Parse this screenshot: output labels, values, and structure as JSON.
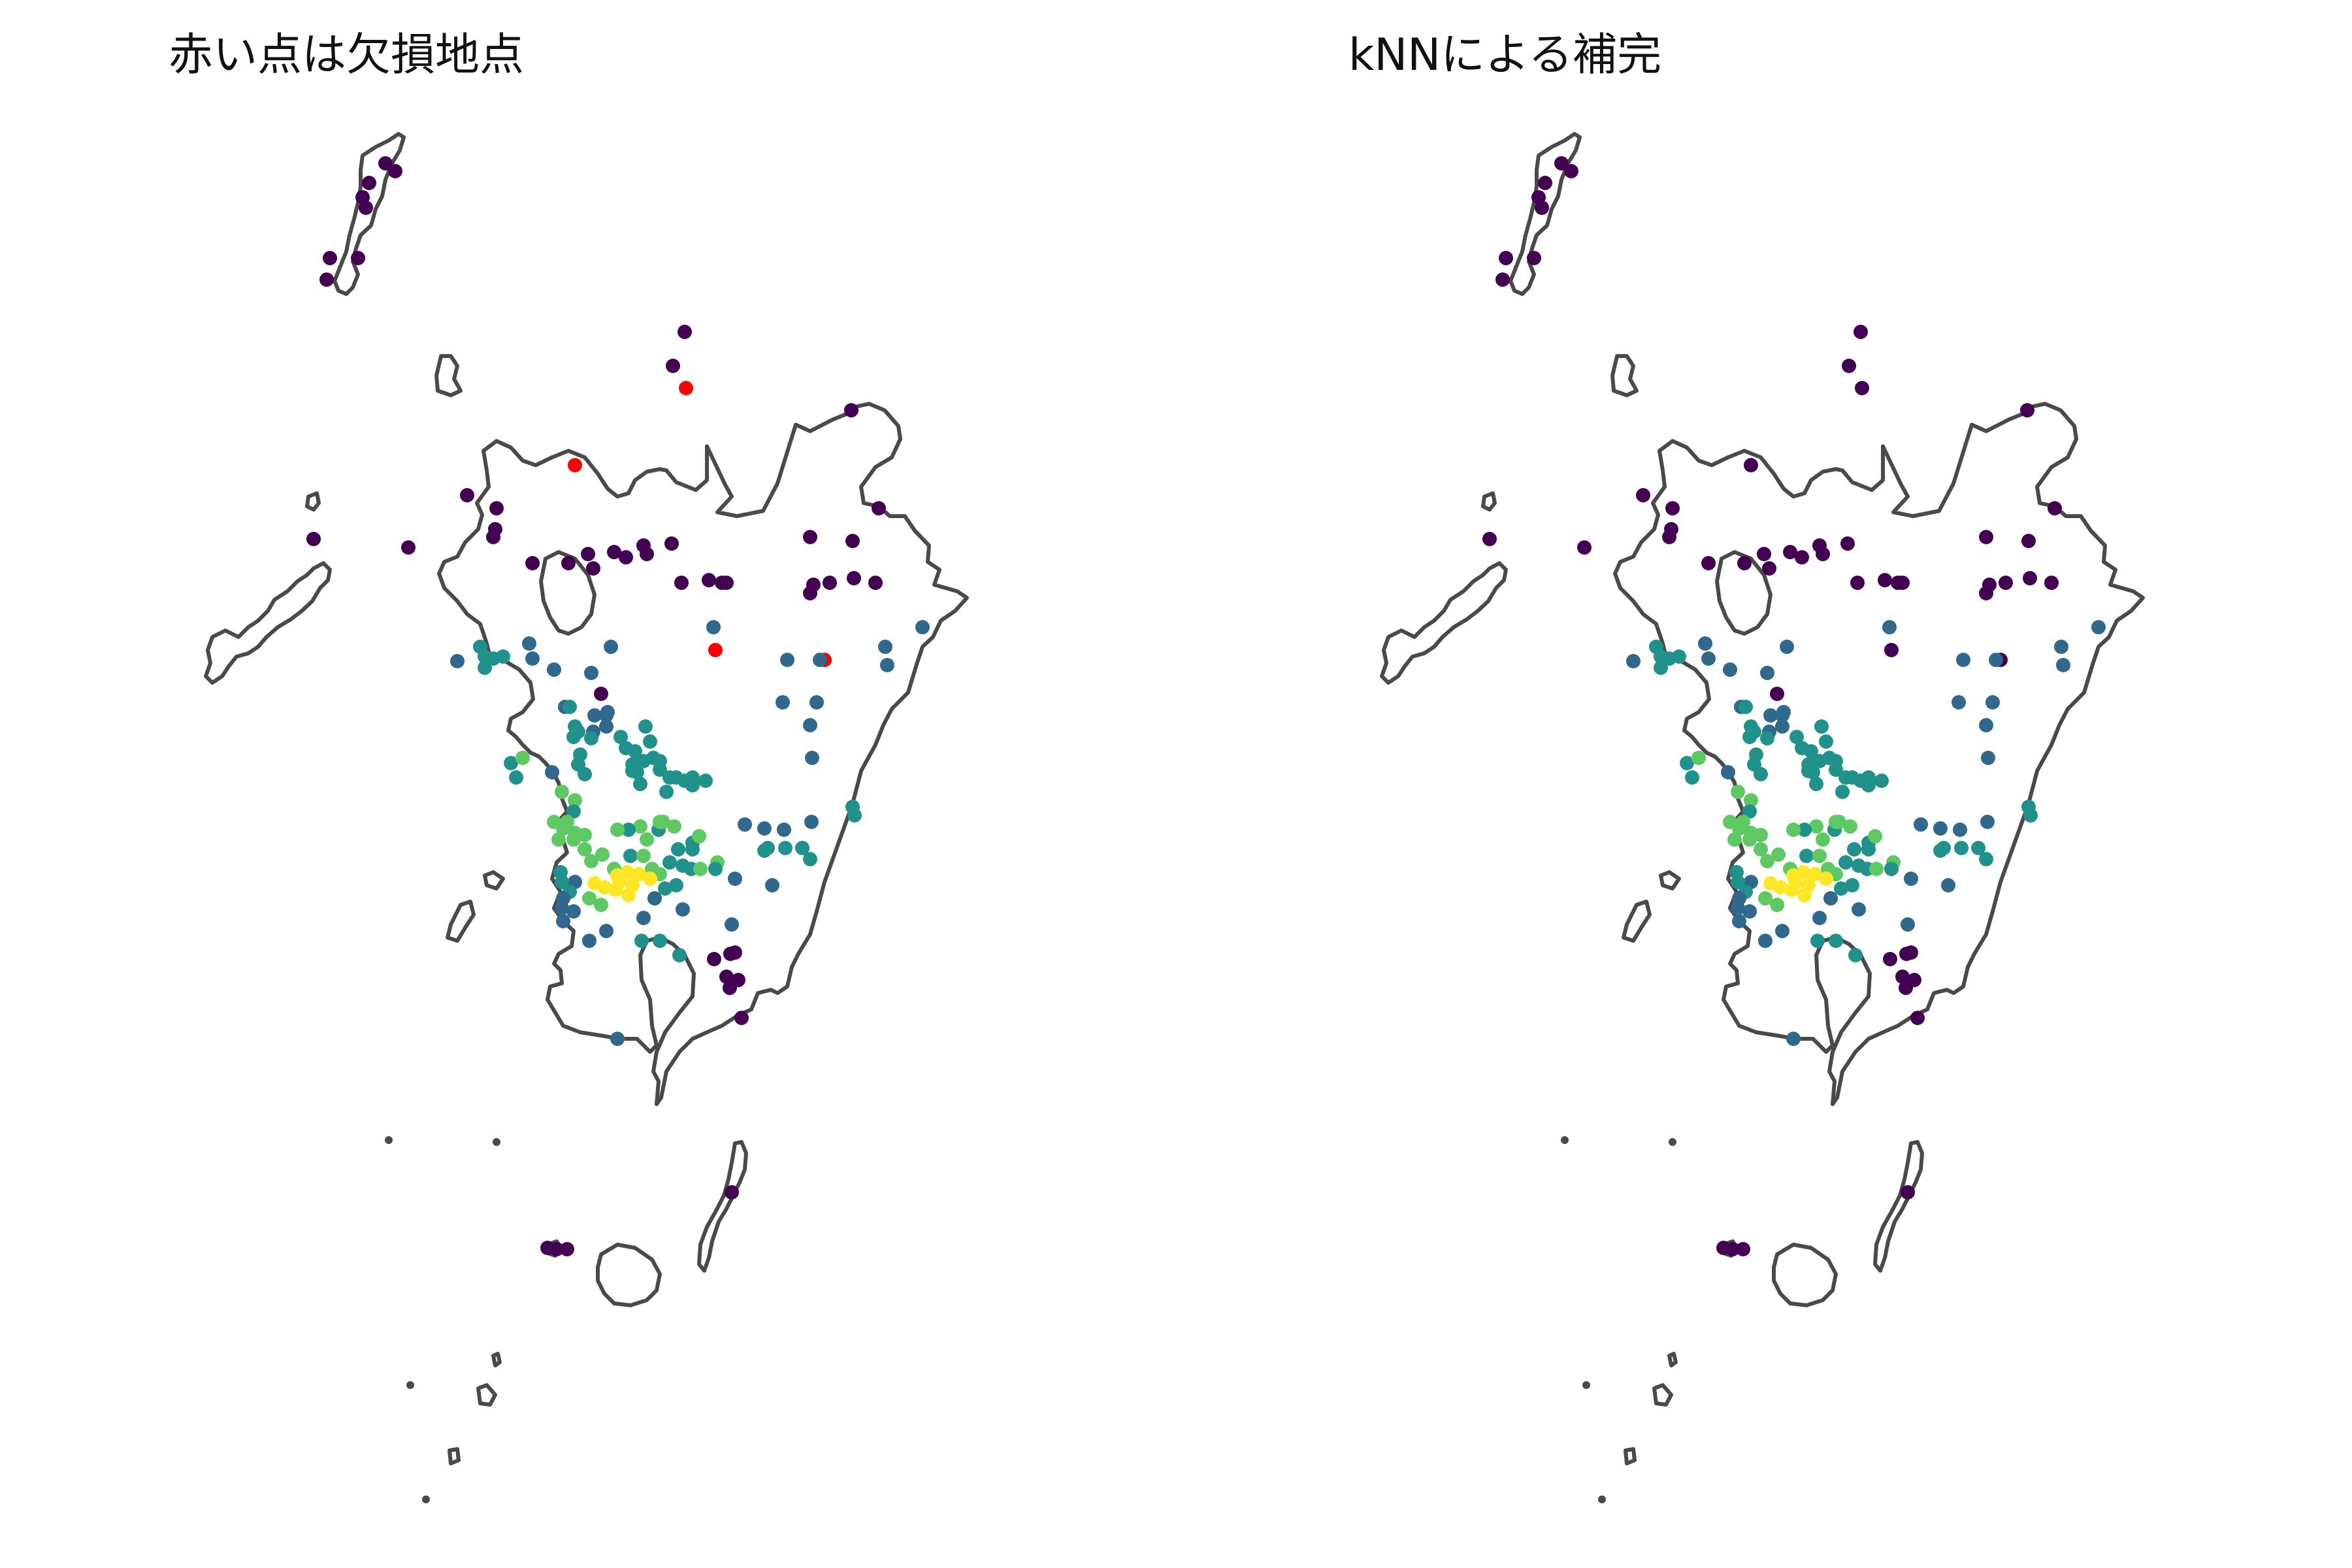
{
  "panels": [
    {
      "title": "赤い点は欠損地点"
    },
    {
      "title": "kNNによる補完"
    }
  ],
  "colors": {
    "missing": "#ff0000",
    "coastline": "#4a4a4a",
    "viridis": [
      "#440154",
      "#31688e",
      "#21918c",
      "#5ec962",
      "#fde725"
    ]
  }
}
